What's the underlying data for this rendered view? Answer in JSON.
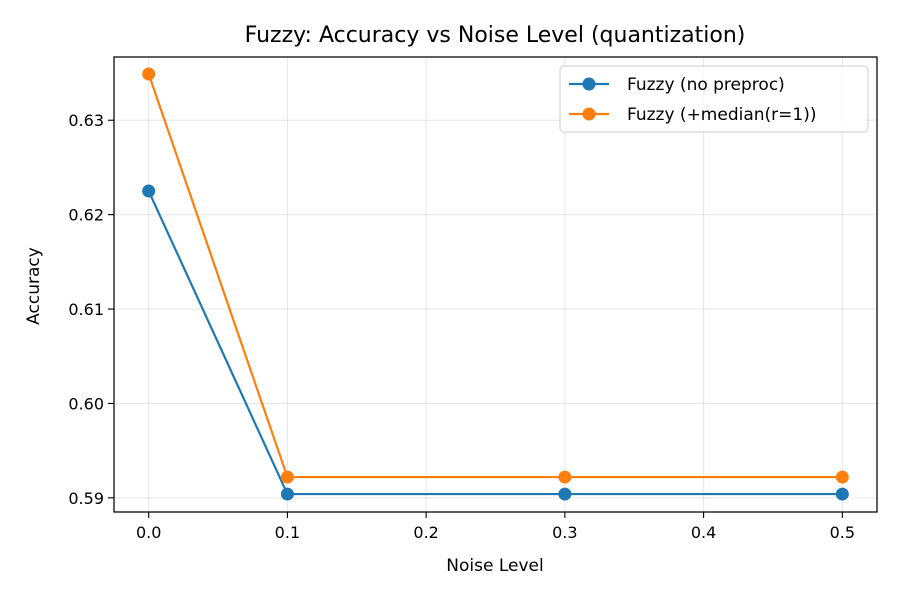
{
  "chart_data": {
    "type": "line",
    "title": "Fuzzy: Accuracy vs Noise Level (quantization)",
    "xlabel": "Noise Level",
    "ylabel": "Accuracy",
    "x": [
      0.0,
      0.1,
      0.3,
      0.5
    ],
    "x_ticks": [
      "0.0",
      "0.1",
      "0.2",
      "0.3",
      "0.4",
      "0.5"
    ],
    "x_tick_values": [
      0.0,
      0.1,
      0.2,
      0.3,
      0.4,
      0.5
    ],
    "y_ticks": [
      "0.59",
      "0.60",
      "0.61",
      "0.62",
      "0.63"
    ],
    "y_tick_values": [
      0.59,
      0.6,
      0.61,
      0.62,
      0.63
    ],
    "xlim": [
      -0.025,
      0.525
    ],
    "ylim": [
      0.5885,
      0.6367
    ],
    "grid": true,
    "legend_position": "top-right",
    "series": [
      {
        "name": "Fuzzy (no preproc)",
        "color": "#1f77b4",
        "values": [
          0.6225,
          0.5904,
          0.5904,
          0.5904
        ]
      },
      {
        "name": "Fuzzy (+median(r=1))",
        "color": "#ff7f0e",
        "values": [
          0.6349,
          0.5922,
          0.5922,
          0.5922
        ]
      }
    ]
  }
}
